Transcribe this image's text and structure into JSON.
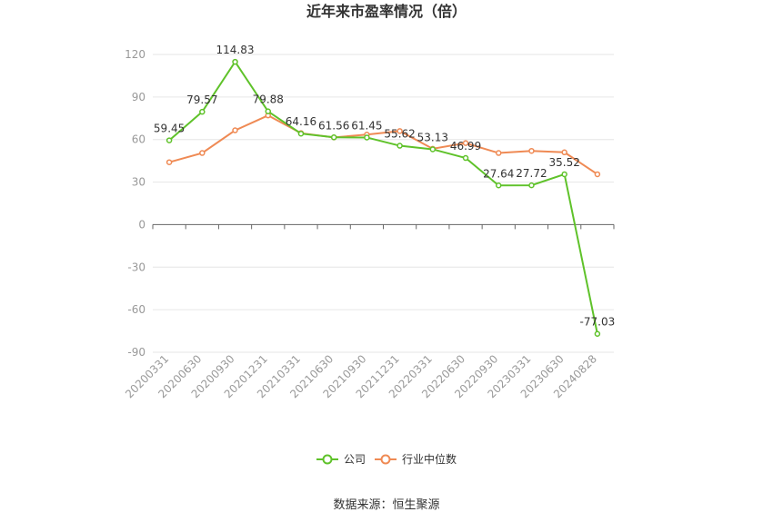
{
  "chart_data": {
    "type": "line",
    "title": "近年来市盈率情况（倍）",
    "source": "数据来源：恒生聚源",
    "x": [
      "20200331",
      "20200630",
      "20200930",
      "20201231",
      "20210331",
      "20210630",
      "20210930",
      "20211231",
      "20220331",
      "20220630",
      "20220930",
      "20230331",
      "20230630",
      "20240828"
    ],
    "ylim": [
      -90,
      120
    ],
    "yticks": [
      120,
      90,
      60,
      30,
      0,
      -30,
      -60,
      -90
    ],
    "grid": true,
    "legend_position": "bottom",
    "series": [
      {
        "name": "公司",
        "color": "#5fc22a",
        "values": [
          59.45,
          79.57,
          114.83,
          79.88,
          64.16,
          61.56,
          61.45,
          55.62,
          53.13,
          46.99,
          27.64,
          27.72,
          35.52,
          -77.03
        ],
        "labels": [
          "59.45",
          "79.57",
          "114.83",
          "79.88",
          "64.16",
          "61.56",
          "61.45",
          "55.62",
          "53.13",
          "46.99",
          "27.64",
          "27.72",
          "35.52",
          "-77.03"
        ]
      },
      {
        "name": "行业中位数",
        "color": "#ef8a54",
        "values": [
          44.0,
          50.5,
          66.5,
          77.0,
          64.5,
          61.5,
          63.5,
          66.0,
          53.5,
          57.5,
          50.5,
          52.0,
          51.0,
          35.5
        ]
      }
    ]
  }
}
